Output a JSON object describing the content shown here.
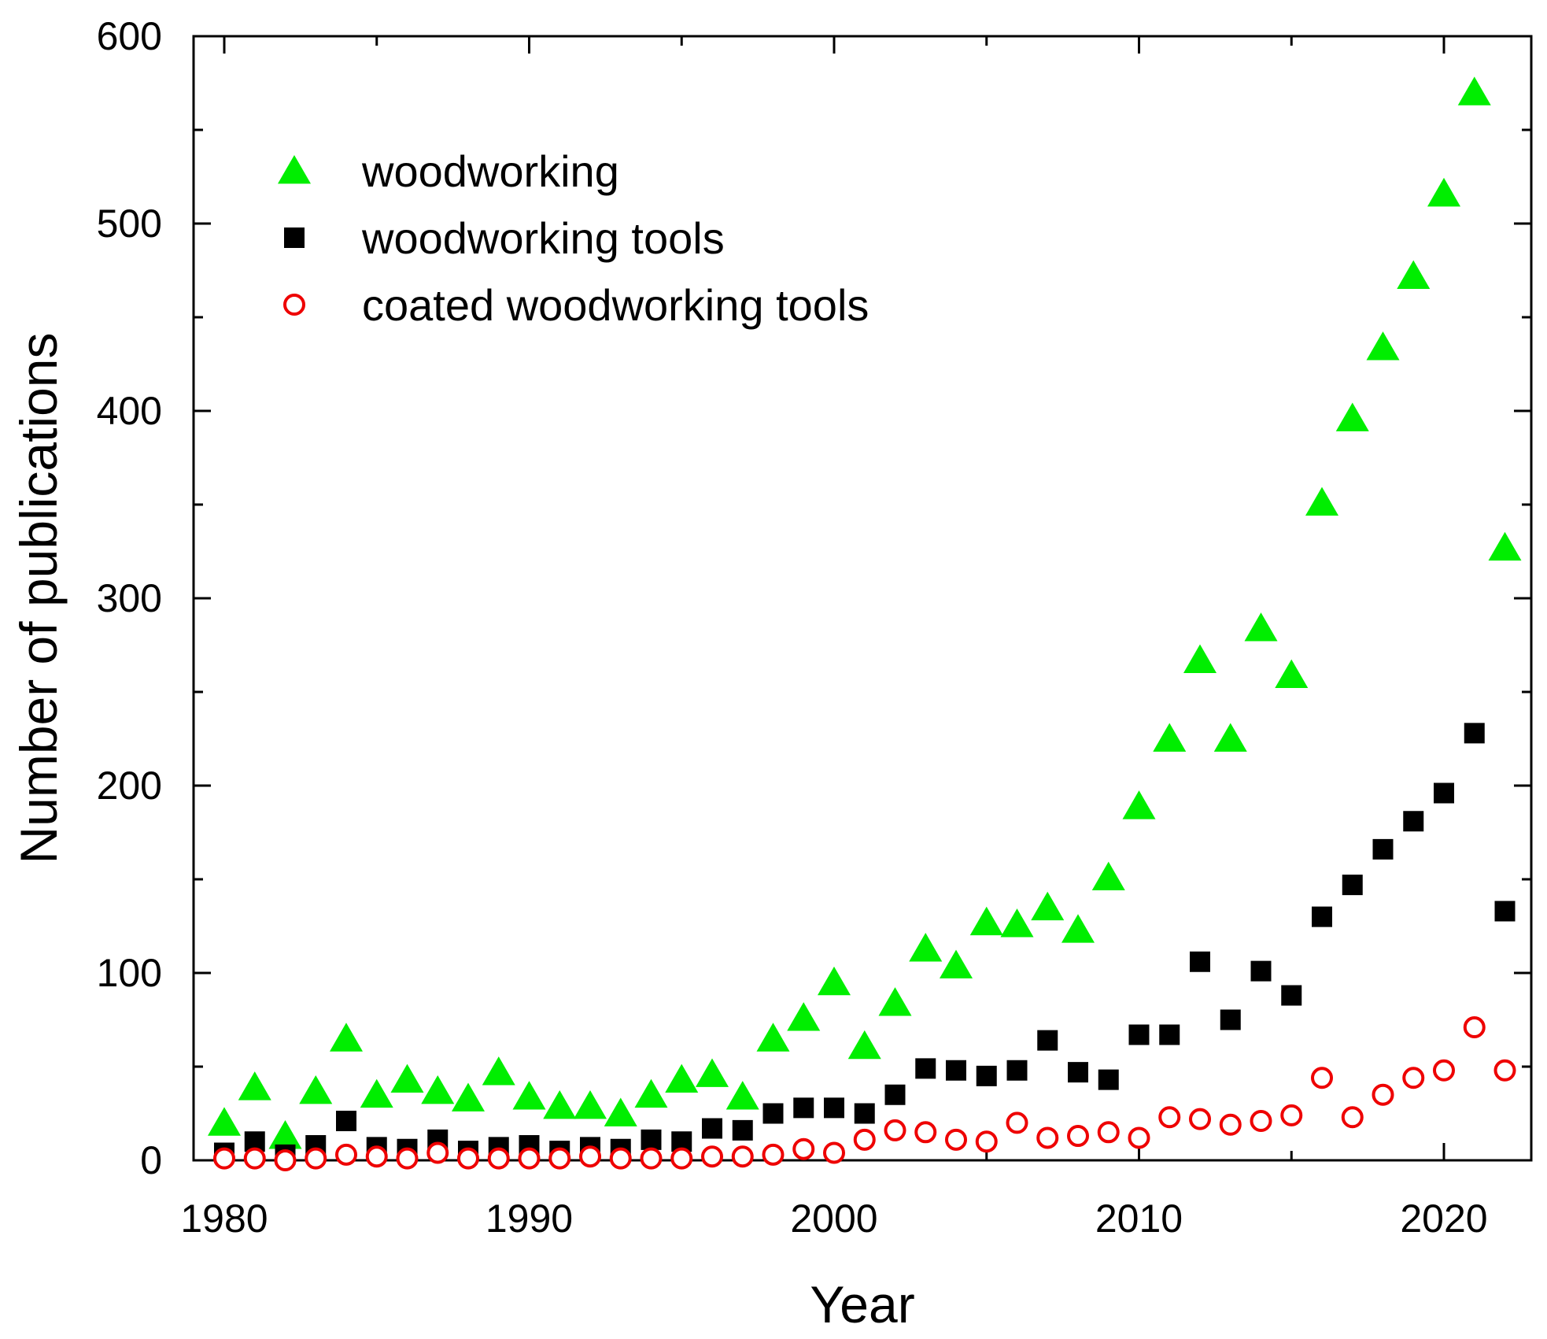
{
  "chart_data": {
    "type": "scatter",
    "xlabel": "Year",
    "ylabel": "Number of publications",
    "xlim": [
      1979,
      2023
    ],
    "ylim": [
      0,
      600
    ],
    "x_ticks": [
      1980,
      1990,
      2000,
      2010,
      2020
    ],
    "y_ticks": [
      0,
      100,
      200,
      300,
      400,
      500,
      600
    ],
    "grid": false,
    "legend_position": "top-left",
    "x": [
      1980,
      1981,
      1982,
      1983,
      1984,
      1985,
      1986,
      1987,
      1988,
      1989,
      1990,
      1991,
      1992,
      1993,
      1994,
      1995,
      1996,
      1997,
      1998,
      1999,
      2000,
      2001,
      2002,
      2003,
      2004,
      2005,
      2006,
      2007,
      2008,
      2009,
      2010,
      2011,
      2012,
      2013,
      2014,
      2015,
      2016,
      2017,
      2018,
      2019,
      2020,
      2021,
      2022
    ],
    "series": [
      {
        "name": "woodworking",
        "marker": "triangle",
        "color": "#00ee00",
        "values": [
          20,
          39,
          13,
          37,
          65,
          35,
          43,
          37,
          33,
          47,
          34,
          29,
          29,
          25,
          35,
          43,
          46,
          34,
          65,
          76,
          95,
          61,
          84,
          113,
          104,
          127,
          126,
          135,
          123,
          151,
          189,
          225,
          267,
          225,
          284,
          259,
          351,
          396,
          434,
          472,
          516,
          570,
          327
        ]
      },
      {
        "name": "woodworking tools",
        "marker": "square",
        "color": "#000000",
        "values": [
          4,
          10,
          3,
          8,
          21,
          7,
          6,
          11,
          5,
          7,
          8,
          5,
          7,
          6,
          11,
          10,
          17,
          16,
          25,
          28,
          28,
          25,
          35,
          49,
          48,
          45,
          48,
          64,
          47,
          43,
          67,
          67,
          106,
          75,
          101,
          88,
          130,
          147,
          166,
          181,
          196,
          228,
          133
        ]
      },
      {
        "name": "coated woodworking tools",
        "marker": "open-circle",
        "color": "#ee0000",
        "values": [
          1,
          1,
          0,
          1,
          3,
          2,
          1,
          4,
          1,
          1,
          1,
          1,
          2,
          1,
          1,
          1,
          2,
          2,
          3,
          6,
          4,
          11,
          16,
          15,
          11,
          10,
          20,
          12,
          13,
          15,
          12,
          23,
          22,
          19,
          21,
          24,
          44,
          23,
          35,
          44,
          48,
          71,
          48
        ]
      }
    ]
  }
}
